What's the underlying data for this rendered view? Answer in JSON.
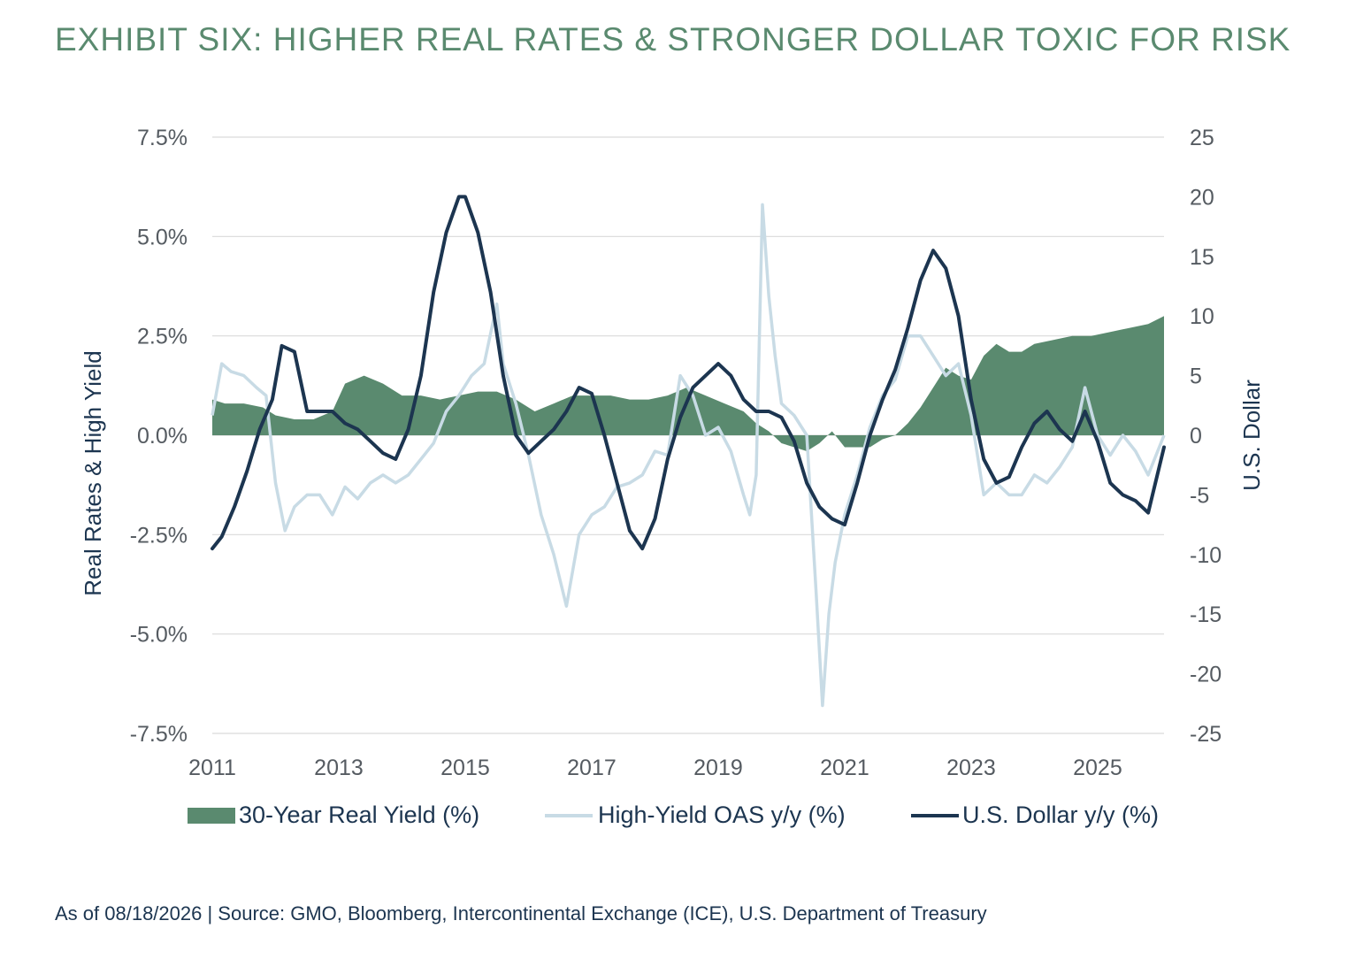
{
  "title": "EXHIBIT SIX: HIGHER REAL RATES & STRONGER DOLLAR TOXIC FOR RISK",
  "footnote": "As of 08/18/2026 | Source: GMO, Bloomberg, Intercontinental Exchange (ICE), U.S. Department of Treasury",
  "colors": {
    "real_yield": "#5a8a6f",
    "hy_oas": "#c8dbe5",
    "usd": "#1c3550",
    "title": "#5a8a6f",
    "grid": "#d9d9d9"
  },
  "chart_data": {
    "type": "line",
    "xlabel": "",
    "x_ticks": [
      "2011",
      "2013",
      "2015",
      "2017",
      "2019",
      "2021",
      "2023",
      "2025"
    ],
    "xlim": [
      2011.0,
      2026.05
    ],
    "y_left": {
      "label": "Real Rates & High Yield",
      "ticks": [
        "7.5%",
        "5.0%",
        "2.5%",
        "0.0%",
        "-2.5%",
        "-5.0%",
        "-7.5%"
      ],
      "range": [
        -7.5,
        7.5
      ]
    },
    "y_right": {
      "label": "U.S. Dollar",
      "ticks": [
        "25",
        "20",
        "15",
        "10",
        "5",
        "0",
        "-5",
        "-10",
        "-15",
        "-20",
        "-25"
      ],
      "range": [
        -25,
        25
      ]
    },
    "grid": true,
    "legend_position": "bottom",
    "series": [
      {
        "name": "30-Year Real Yield (%)",
        "type": "area",
        "axis": "left",
        "x": [
          2011.0,
          2011.2,
          2011.5,
          2011.8,
          2012.0,
          2012.3,
          2012.6,
          2012.9,
          2013.1,
          2013.4,
          2013.7,
          2014.0,
          2014.3,
          2014.6,
          2014.9,
          2015.2,
          2015.5,
          2015.8,
          2016.1,
          2016.4,
          2016.7,
          2017.0,
          2017.3,
          2017.6,
          2017.9,
          2018.2,
          2018.5,
          2018.8,
          2019.1,
          2019.4,
          2019.6,
          2019.8,
          2020.0,
          2020.2,
          2020.4,
          2020.6,
          2020.8,
          2021.0,
          2021.2,
          2021.4,
          2021.6,
          2021.8,
          2022.0,
          2022.2,
          2022.4,
          2022.6,
          2022.8,
          2023.0,
          2023.2,
          2023.4,
          2023.6,
          2023.8,
          2024.0,
          2024.3,
          2024.6,
          2024.9,
          2025.2,
          2025.5,
          2025.8,
          2026.05
        ],
        "values": [
          0.9,
          0.8,
          0.8,
          0.7,
          0.5,
          0.4,
          0.4,
          0.6,
          1.3,
          1.5,
          1.3,
          1.0,
          1.0,
          0.9,
          1.0,
          1.1,
          1.1,
          0.9,
          0.6,
          0.8,
          1.0,
          1.0,
          1.0,
          0.9,
          0.9,
          1.0,
          1.2,
          1.0,
          0.8,
          0.6,
          0.3,
          0.1,
          -0.2,
          -0.3,
          -0.4,
          -0.2,
          0.1,
          -0.3,
          -0.3,
          -0.3,
          -0.1,
          0.0,
          0.3,
          0.7,
          1.2,
          1.7,
          1.5,
          1.4,
          2.0,
          2.3,
          2.1,
          2.1,
          2.3,
          2.4,
          2.5,
          2.5,
          2.6,
          2.7,
          2.8,
          3.0
        ]
      },
      {
        "name": "High-Yield OAS y/y (%)",
        "type": "line",
        "axis": "left",
        "x": [
          2011.0,
          2011.15,
          2011.3,
          2011.5,
          2011.7,
          2011.85,
          2012.0,
          2012.15,
          2012.3,
          2012.5,
          2012.7,
          2012.9,
          2013.1,
          2013.3,
          2013.5,
          2013.7,
          2013.9,
          2014.1,
          2014.3,
          2014.5,
          2014.7,
          2014.9,
          2015.1,
          2015.3,
          2015.5,
          2015.6,
          2015.8,
          2016.0,
          2016.2,
          2016.4,
          2016.6,
          2016.8,
          2017.0,
          2017.2,
          2017.4,
          2017.6,
          2017.8,
          2018.0,
          2018.2,
          2018.4,
          2018.6,
          2018.8,
          2019.0,
          2019.2,
          2019.4,
          2019.5,
          2019.6,
          2019.7,
          2019.8,
          2019.9,
          2020.0,
          2020.2,
          2020.4,
          2020.55,
          2020.65,
          2020.75,
          2020.85,
          2021.0,
          2021.2,
          2021.4,
          2021.6,
          2021.8,
          2022.0,
          2022.2,
          2022.4,
          2022.6,
          2022.8,
          2023.0,
          2023.2,
          2023.4,
          2023.6,
          2023.8,
          2024.0,
          2024.2,
          2024.4,
          2024.6,
          2024.8,
          2025.0,
          2025.2,
          2025.4,
          2025.6,
          2025.8,
          2026.05
        ],
        "values": [
          0.5,
          1.8,
          1.6,
          1.5,
          1.2,
          1.0,
          -1.2,
          -2.4,
          -1.8,
          -1.5,
          -1.5,
          -2.0,
          -1.3,
          -1.6,
          -1.2,
          -1.0,
          -1.2,
          -1.0,
          -0.6,
          -0.2,
          0.6,
          1.0,
          1.5,
          1.8,
          3.3,
          1.8,
          0.8,
          -0.5,
          -2.0,
          -3.0,
          -4.3,
          -2.5,
          -2.0,
          -1.8,
          -1.3,
          -1.2,
          -1.0,
          -0.4,
          -0.5,
          1.5,
          1.0,
          0.0,
          0.2,
          -0.4,
          -1.5,
          -2.0,
          -1.0,
          5.8,
          3.5,
          2.0,
          0.8,
          0.5,
          0.0,
          -4.0,
          -6.8,
          -4.5,
          -3.2,
          -2.0,
          -1.0,
          0.2,
          1.0,
          1.4,
          2.5,
          2.5,
          2.0,
          1.5,
          1.8,
          0.5,
          -1.5,
          -1.2,
          -1.5,
          -1.5,
          -1.0,
          -1.2,
          -0.8,
          -0.3,
          1.2,
          0.0,
          -0.5,
          0.0,
          -0.4,
          -1.0,
          0.0
        ]
      },
      {
        "name": "U.S. Dollar y/y (%)",
        "type": "line",
        "axis": "right",
        "x": [
          2011.0,
          2011.15,
          2011.35,
          2011.55,
          2011.75,
          2011.95,
          2012.1,
          2012.3,
          2012.5,
          2012.7,
          2012.9,
          2013.1,
          2013.3,
          2013.5,
          2013.7,
          2013.9,
          2014.1,
          2014.3,
          2014.5,
          2014.7,
          2014.9,
          2015.0,
          2015.2,
          2015.4,
          2015.6,
          2015.8,
          2016.0,
          2016.2,
          2016.4,
          2016.6,
          2016.8,
          2017.0,
          2017.2,
          2017.4,
          2017.6,
          2017.8,
          2018.0,
          2018.2,
          2018.4,
          2018.6,
          2018.8,
          2019.0,
          2019.2,
          2019.4,
          2019.6,
          2019.8,
          2020.0,
          2020.2,
          2020.4,
          2020.6,
          2020.8,
          2021.0,
          2021.2,
          2021.4,
          2021.6,
          2021.8,
          2022.0,
          2022.2,
          2022.4,
          2022.6,
          2022.8,
          2023.0,
          2023.2,
          2023.4,
          2023.6,
          2023.8,
          2024.0,
          2024.2,
          2024.4,
          2024.6,
          2024.8,
          2025.0,
          2025.2,
          2025.4,
          2025.6,
          2025.8,
          2026.05
        ],
        "values": [
          -9.5,
          -8.5,
          -6.0,
          -3.0,
          0.5,
          3.0,
          7.5,
          7.0,
          2.0,
          2.0,
          2.0,
          1.0,
          0.5,
          -0.5,
          -1.5,
          -2.0,
          0.5,
          5.0,
          12.0,
          17.0,
          20.0,
          20.0,
          17.0,
          12.0,
          5.0,
          0.0,
          -1.5,
          -0.5,
          0.5,
          2.0,
          4.0,
          3.5,
          0.0,
          -4.0,
          -8.0,
          -9.5,
          -7.0,
          -2.0,
          1.5,
          4.0,
          5.0,
          6.0,
          5.0,
          3.0,
          2.0,
          2.0,
          1.5,
          -0.5,
          -4.0,
          -6.0,
          -7.0,
          -7.5,
          -4.0,
          0.0,
          3.0,
          5.5,
          9.0,
          13.0,
          15.5,
          14.0,
          10.0,
          3.0,
          -2.0,
          -4.0,
          -3.5,
          -1.0,
          1.0,
          2.0,
          0.5,
          -0.5,
          2.0,
          -0.5,
          -4.0,
          -5.0,
          -5.5,
          -6.5,
          -1.0
        ]
      }
    ]
  }
}
